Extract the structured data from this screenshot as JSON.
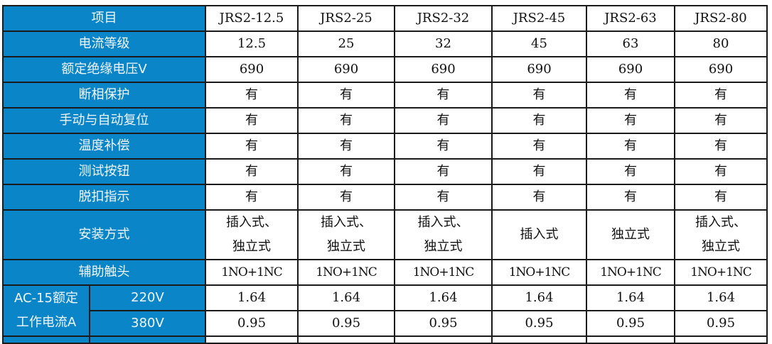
{
  "header": {
    "label": "项目",
    "models": [
      "JRS2-12.5",
      "JRS2-25",
      "JRS2-32",
      "JRS2-45",
      "JRS2-63",
      "JRS2-80"
    ]
  },
  "rows": [
    {
      "label": "电流等级",
      "values": [
        "12.5",
        "25",
        "32",
        "45",
        "63",
        "80"
      ]
    },
    {
      "label": "额定绝缘电压V",
      "values": [
        "690",
        "690",
        "690",
        "690",
        "690",
        "690"
      ]
    },
    {
      "label": "断相保护",
      "values": [
        "有",
        "有",
        "有",
        "有",
        "有",
        "有"
      ]
    },
    {
      "label": "手动与自动复位",
      "values": [
        "有",
        "有",
        "有",
        "有",
        "有",
        "有"
      ]
    },
    {
      "label": "温度补偿",
      "values": [
        "有",
        "有",
        "有",
        "有",
        "有",
        "有"
      ]
    },
    {
      "label": "测试按钮",
      "values": [
        "有",
        "有",
        "有",
        "有",
        "有",
        "有"
      ]
    },
    {
      "label": "脱扣指示",
      "values": [
        "有",
        "有",
        "有",
        "有",
        "有",
        "有"
      ]
    }
  ],
  "install": {
    "label": "安装方式",
    "values": [
      [
        "插入式、",
        "独立式"
      ],
      [
        "插入式、",
        "独立式"
      ],
      [
        "插入式、",
        "独立式"
      ],
      [
        "插入式"
      ],
      [
        "独立式"
      ],
      [
        "插入式、",
        "独立式"
      ]
    ]
  },
  "aux": {
    "label": "辅助触头",
    "values": [
      "1NO+1NC",
      "1NO+1NC",
      "1NO+1NC",
      "1NO+1NC",
      "1NO+1NC",
      "1NO+1NC"
    ]
  },
  "ac15": {
    "label_line1": "AC-15额定",
    "label_line2": "工作电流A",
    "rows": [
      {
        "voltage": "220V",
        "values": [
          "1.64",
          "1.64",
          "1.64",
          "1.64",
          "1.64",
          "1.64"
        ]
      },
      {
        "voltage": "380V",
        "values": [
          "0.95",
          "0.95",
          "0.95",
          "0.95",
          "0.95",
          "0.95"
        ]
      }
    ]
  },
  "colors": {
    "header_bg": "#0a86c8",
    "header_text": "#f2f6fa",
    "border": "#1a1a1a"
  }
}
